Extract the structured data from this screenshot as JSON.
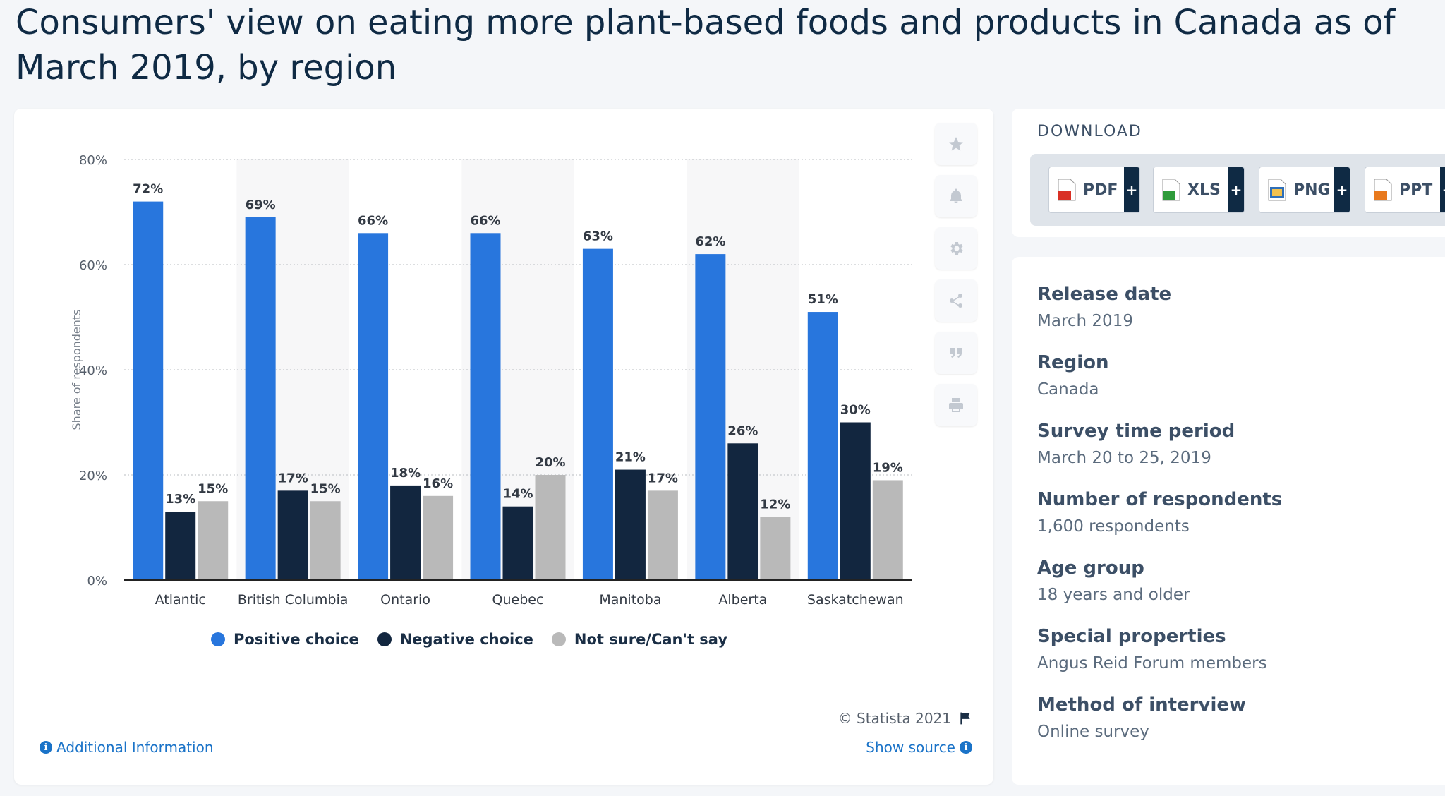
{
  "title": "Consumers' view on eating more plant-based foods and products in Canada as of March 2019, by region",
  "chart_data": {
    "type": "bar",
    "title": "Consumers' view on eating more plant-based foods and products in Canada as of March 2019, by region",
    "xlabel": "",
    "ylabel": "Share of respondents",
    "ylim": [
      0,
      80
    ],
    "yticks": [
      "0%",
      "20%",
      "40%",
      "60%",
      "80%"
    ],
    "categories": [
      "Atlantic",
      "British Columbia",
      "Ontario",
      "Quebec",
      "Manitoba",
      "Alberta",
      "Saskatchewan"
    ],
    "series": [
      {
        "name": "Positive choice",
        "color": "#2876dd",
        "values": [
          72,
          69,
          66,
          66,
          63,
          62,
          51
        ]
      },
      {
        "name": "Negative choice",
        "color": "#12263f",
        "values": [
          13,
          17,
          18,
          14,
          21,
          26,
          30
        ]
      },
      {
        "name": "Not sure/Can't say",
        "color": "#b9b9b9",
        "values": [
          15,
          15,
          16,
          20,
          17,
          12,
          19
        ]
      }
    ],
    "value_suffix": "%",
    "grid": true,
    "legend": "bottom-center"
  },
  "tools": [
    "star-icon",
    "bell-icon",
    "gear-icon",
    "share-icon",
    "quote-icon",
    "print-icon"
  ],
  "footer": {
    "copyright": "© Statista 2021",
    "additional_info": "Additional Information",
    "show_source": "Show source"
  },
  "download": {
    "title": "DOWNLOAD",
    "buttons": [
      {
        "label": "PDF",
        "color": "#d93025"
      },
      {
        "label": "XLS",
        "color": "#2e9b3a"
      },
      {
        "label": "PNG",
        "color": "#2f6fb8"
      },
      {
        "label": "PPT",
        "color": "#e8791d"
      }
    ]
  },
  "details": [
    {
      "key": "Release date",
      "value": "March 2019"
    },
    {
      "key": "Region",
      "value": "Canada"
    },
    {
      "key": "Survey time period",
      "value": "March 20 to 25, 2019"
    },
    {
      "key": "Number of respondents",
      "value": "1,600 respondents"
    },
    {
      "key": "Age group",
      "value": "18 years and older"
    },
    {
      "key": "Special properties",
      "value": "Angus Reid Forum members"
    },
    {
      "key": "Method of interview",
      "value": "Online survey"
    }
  ]
}
